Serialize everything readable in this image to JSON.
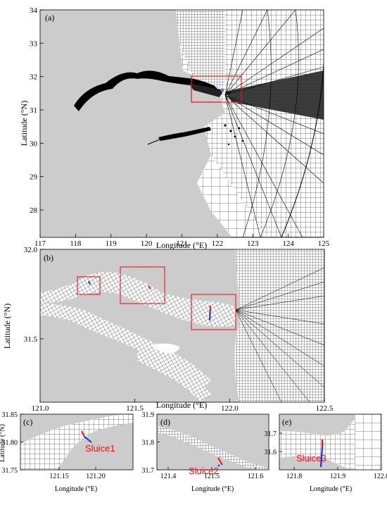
{
  "colors": {
    "land": "#cccccc",
    "mesh": "#000000",
    "box": "#e8151b",
    "sluice_label": "#e8151b",
    "sluice_line": "#1534e0",
    "sluice_mark": "#e8151b"
  },
  "panel_a": {
    "tag": "(a)",
    "xlabel": "Longitude (°E)",
    "ylabel": "Latitude (°N)",
    "xticks": [
      "117",
      "118",
      "119",
      "120",
      "121",
      "122",
      "123",
      "124",
      "125"
    ],
    "yticks": [
      "34",
      "33",
      "32",
      "31",
      "30",
      "29",
      "28"
    ]
  },
  "panel_b": {
    "tag": "(b)",
    "xlabel": "Longitude (°E)",
    "ylabel": "Latitude (°N)",
    "xticks": [
      "121.0",
      "121.5",
      "122.0",
      "122.5"
    ],
    "yticks": [
      "32.0",
      "31.5"
    ]
  },
  "panel_c": {
    "tag": "(c)",
    "xlabel": "Longitude (°E)",
    "ylabel": "Latitude (°N)",
    "xticks": [
      "121.15",
      "121.20"
    ],
    "yticks": [
      "31.85",
      "31.80",
      "31.75"
    ],
    "sluice": "Sluice1"
  },
  "panel_d": {
    "tag": "(d)",
    "xlabel": "Longitude (°E)",
    "xticks": [
      "121.4",
      "121.5",
      "121.6"
    ],
    "yticks": [
      "31.9",
      "31.8",
      "31.7"
    ],
    "sluice": "Sluice2"
  },
  "panel_e": {
    "tag": "(e)",
    "xlabel": "Longitude (°E)",
    "xticks": [
      "121.8",
      "121.9",
      "122.0"
    ],
    "yticks": [
      "31.7",
      "31.6"
    ],
    "sluice": "Sluice3"
  }
}
